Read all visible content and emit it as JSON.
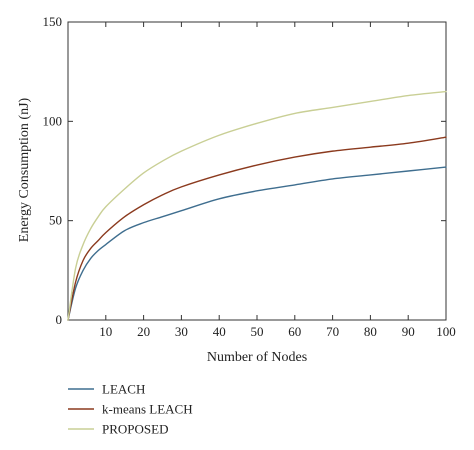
{
  "chart_data": {
    "type": "line",
    "title": "",
    "xlabel": "Number of Nodes",
    "ylabel": "Energy Consumption (nJ)",
    "xlim": [
      0,
      100
    ],
    "ylim": [
      0,
      150
    ],
    "xticks": [
      10,
      20,
      30,
      40,
      50,
      60,
      70,
      80,
      90,
      100
    ],
    "yticks": [
      0,
      50,
      100,
      150
    ],
    "grid": false,
    "legend_position": "bottom-left, below plot",
    "x": [
      0,
      2,
      4,
      6,
      8,
      10,
      15,
      20,
      25,
      30,
      40,
      50,
      60,
      70,
      80,
      90,
      100
    ],
    "series": [
      {
        "name": "LEACH",
        "color": "#3f6e8f",
        "values": [
          0,
          16,
          25,
          31,
          35,
          38,
          45,
          49,
          52,
          55,
          61,
          65,
          68,
          71,
          73,
          75,
          77
        ]
      },
      {
        "name": "k-means LEACH",
        "color": "#8b3a1e",
        "values": [
          0,
          19,
          30,
          36,
          40,
          44,
          52,
          58,
          63,
          67,
          73,
          78,
          82,
          85,
          87,
          89,
          92
        ]
      },
      {
        "name": "PROPOSED",
        "color": "#c9cf95",
        "values": [
          0,
          26,
          38,
          46,
          52,
          57,
          66,
          74,
          80,
          85,
          93,
          99,
          104,
          107,
          110,
          113,
          115
        ]
      }
    ]
  }
}
